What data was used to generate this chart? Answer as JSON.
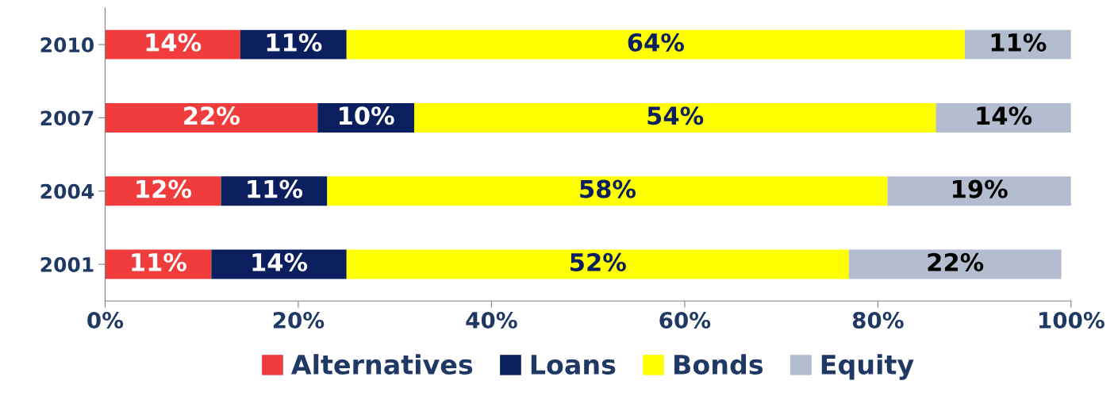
{
  "chart_data": {
    "type": "bar",
    "orientation": "horizontal",
    "stacked": true,
    "categories": [
      "2010",
      "2007",
      "2004",
      "2001"
    ],
    "series": [
      {
        "name": "Alternatives",
        "color": "#f03c3c",
        "values": [
          14,
          22,
          12,
          11
        ],
        "value_labels": [
          "14%",
          "22%",
          "12%",
          "11%"
        ]
      },
      {
        "name": "Loans",
        "color": "#0b1f5e",
        "values": [
          11,
          10,
          11,
          14
        ],
        "value_labels": [
          "11%",
          "10%",
          "11%",
          "14%"
        ]
      },
      {
        "name": "Bonds",
        "color": "#ffff00",
        "values": [
          64,
          54,
          58,
          52
        ],
        "value_labels": [
          "64%",
          "54%",
          "58%",
          "52%"
        ]
      },
      {
        "name": "Equity",
        "color": "#b4bccf",
        "values": [
          11,
          14,
          19,
          22
        ],
        "value_labels": [
          "11%",
          "14%",
          "19%",
          "22%"
        ]
      }
    ],
    "xlim": [
      0,
      100
    ],
    "xticks": [
      {
        "value": 0,
        "label": "0%"
      },
      {
        "value": 20,
        "label": "20%"
      },
      {
        "value": 40,
        "label": "40%"
      },
      {
        "value": 60,
        "label": "60%"
      },
      {
        "value": 80,
        "label": "80%"
      },
      {
        "value": 100,
        "label": "100%"
      }
    ],
    "grid": false,
    "legend": "bottom"
  }
}
